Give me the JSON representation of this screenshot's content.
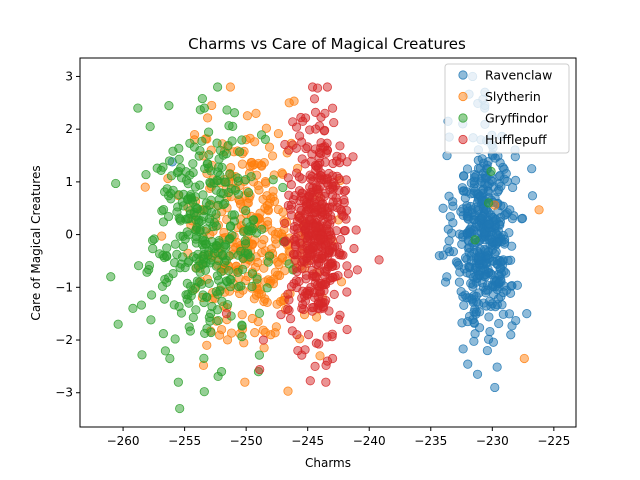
{
  "chart_data": {
    "type": "scatter",
    "title": "Charms vs Care of Magical Creatures",
    "xlabel": "Charms",
    "ylabel": "Care of Magical Creatures",
    "xlim": [
      -263.5,
      -223.2
    ],
    "ylim": [
      -3.65,
      3.35
    ],
    "xticks": [
      -260,
      -255,
      -250,
      -245,
      -240,
      -235,
      -230,
      -225
    ],
    "yticks": [
      -3,
      -2,
      -1,
      0,
      1,
      2,
      3
    ],
    "grid": false,
    "legend_position": "top-right",
    "marker_alpha": 0.5,
    "series": [
      {
        "name": "Ravenclaw",
        "color": "#1f77b4",
        "center": [
          -230.6,
          0.0
        ],
        "spread": [
          1.2,
          0.95
        ],
        "count": 430,
        "points": [
          [
            -231.6,
            3.0
          ],
          [
            -230.6,
            2.7
          ],
          [
            -232.4,
            2.1
          ],
          [
            -233.6,
            2.15
          ],
          [
            -226.8,
            1.25
          ],
          [
            -234.0,
            0.5
          ],
          [
            -233.8,
            -0.9
          ],
          [
            -232.0,
            -1.65
          ],
          [
            -230.4,
            -2.2
          ],
          [
            -231.2,
            -2.65
          ],
          [
            -229.8,
            -2.9
          ],
          [
            -228.5,
            -1.9
          ],
          [
            -227.2,
            -1.5
          ],
          [
            -227.6,
            0.3
          ],
          [
            -234.3,
            -0.4
          ],
          [
            -256.0,
            1.38
          ],
          [
            -231.5,
            0.28
          ]
        ]
      },
      {
        "name": "Slytherin",
        "color": "#ff7f0e",
        "center": [
          -249.6,
          0.0
        ],
        "spread": [
          2.5,
          1.0
        ],
        "count": 310,
        "points": [
          [
            -252.8,
            2.45
          ],
          [
            -246.5,
            2.5
          ],
          [
            -249.2,
            2.3
          ],
          [
            -246.6,
            -2.97
          ],
          [
            -253.2,
            -2.1
          ],
          [
            -244.0,
            -2.3
          ],
          [
            -258.2,
            0.9
          ],
          [
            -250.0,
            1.8
          ],
          [
            -226.2,
            0.47
          ],
          [
            -227.4,
            -2.35
          ],
          [
            -229.8,
            0.56
          ],
          [
            -248.0,
            -1.9
          ],
          [
            -250.8,
            -0.6
          ]
        ]
      },
      {
        "name": "Gryffindor",
        "color": "#2ca02c",
        "center": [
          -253.2,
          0.0
        ],
        "spread": [
          2.4,
          1.0
        ],
        "count": 330,
        "points": [
          [
            -258.8,
            2.4
          ],
          [
            -257.8,
            2.05
          ],
          [
            -253.4,
            2.4
          ],
          [
            -255.4,
            -3.3
          ],
          [
            -253.4,
            -2.98
          ],
          [
            -261.0,
            -0.8
          ],
          [
            -260.6,
            0.97
          ],
          [
            -260.4,
            -1.7
          ],
          [
            -249.0,
            -2.6
          ],
          [
            -252.0,
            -2.6
          ],
          [
            -256.2,
            -2.35
          ],
          [
            -230.1,
            1.2
          ],
          [
            -230.3,
            0.6
          ],
          [
            -231.4,
            -0.1
          ],
          [
            -259.2,
            -1.4
          ]
        ]
      },
      {
        "name": "Hufflepuff",
        "color": "#d62728",
        "center": [
          -244.2,
          0.1
        ],
        "spread": [
          1.2,
          0.95
        ],
        "count": 430,
        "points": [
          [
            -244.2,
            2.78
          ],
          [
            -243.6,
            2.3
          ],
          [
            -245.4,
            2.15
          ],
          [
            -239.2,
            -0.48
          ],
          [
            -245.8,
            -2.2
          ],
          [
            -244.4,
            -2.5
          ],
          [
            -243.4,
            -2.4
          ],
          [
            -248.6,
            -2.0
          ],
          [
            -251.6,
            -1.5
          ],
          [
            -241.8,
            -1.8
          ],
          [
            -241.8,
            1.38
          ],
          [
            -246.2,
            1.7
          ]
        ]
      }
    ]
  }
}
